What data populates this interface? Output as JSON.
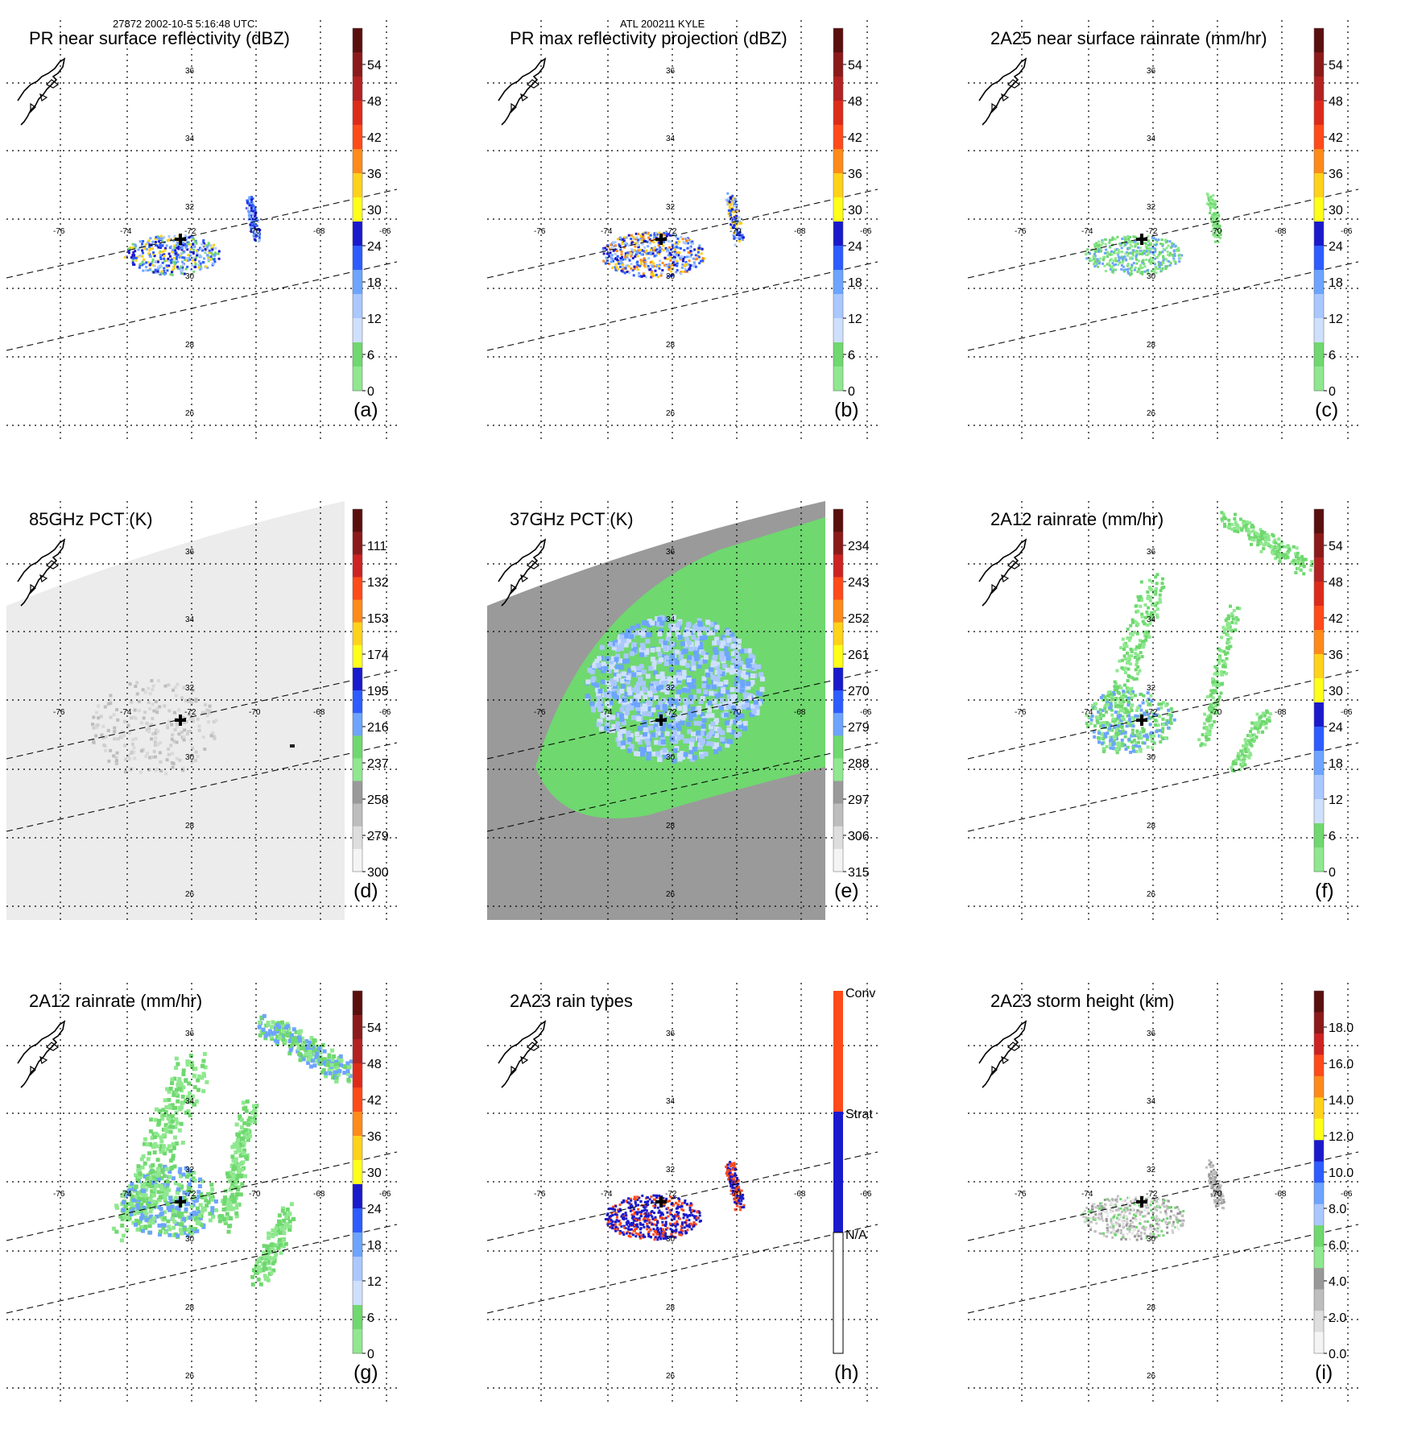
{
  "header": {
    "left": "27872 2002-10-5 5:16:48 UTC",
    "center": "ATL 200211 KYLE"
  },
  "map": {
    "lon_labels": [
      "-76",
      "-74",
      "-72",
      "-70",
      "-68",
      "-66"
    ],
    "lat_labels": [
      "36",
      "34",
      "32",
      "30",
      "28",
      "26"
    ],
    "center_marker": "storm-center-cross"
  },
  "colors": {
    "grid": "#000000",
    "green": "#6fd86f",
    "light_blue": "#aac8ff",
    "blue": "#2d5cff",
    "gray": "#999999"
  },
  "panels": [
    {
      "id": "a",
      "title": "PR near surface reflectivity (dBZ)",
      "label": "(a)",
      "colorbar": {
        "labels": [
          "54",
          "48",
          "42",
          "36",
          "30",
          "24",
          "18",
          "12",
          "6",
          "0"
        ]
      }
    },
    {
      "id": "b",
      "title": "PR max reflectivity projection (dBZ)",
      "label": "(b)",
      "colorbar": {
        "labels": [
          "54",
          "48",
          "42",
          "36",
          "30",
          "24",
          "18",
          "12",
          "6",
          "0"
        ]
      }
    },
    {
      "id": "c",
      "title": "2A25 near surface rainrate (mm/hr)",
      "label": "(c)",
      "colorbar": {
        "labels": [
          "54",
          "48",
          "42",
          "36",
          "30",
          "24",
          "18",
          "12",
          "6",
          "0"
        ]
      }
    },
    {
      "id": "d",
      "title": "85GHz PCT (K)",
      "label": "(d)",
      "colorbar": {
        "labels": [
          "111",
          "132",
          "153",
          "174",
          "195",
          "216",
          "237",
          "258",
          "279",
          "300"
        ]
      }
    },
    {
      "id": "e",
      "title": "37GHz PCT (K)",
      "label": "(e)",
      "colorbar": {
        "labels": [
          "234",
          "243",
          "252",
          "261",
          "270",
          "279",
          "288",
          "297",
          "306",
          "315"
        ]
      }
    },
    {
      "id": "f",
      "title": "2A12 rainrate (mm/hr)",
      "label": "(f)",
      "colorbar": {
        "labels": [
          "54",
          "48",
          "42",
          "36",
          "30",
          "24",
          "18",
          "12",
          "6",
          "0"
        ]
      }
    },
    {
      "id": "g",
      "title": "2A12 rainrate (mm/hr)",
      "label": "(g)",
      "colorbar": {
        "labels": [
          "54",
          "48",
          "42",
          "36",
          "30",
          "24",
          "18",
          "12",
          "6",
          "0"
        ]
      }
    },
    {
      "id": "h",
      "title": "2A23 rain types",
      "label": "(h)",
      "colorbar": {
        "labels": [
          "Conv",
          "Strat",
          "N/A"
        ]
      }
    },
    {
      "id": "i",
      "title": "2A23 storm height (km)",
      "label": "(i)",
      "colorbar": {
        "labels": [
          "18.0",
          "16.0",
          "14.0",
          "12.0",
          "10.0",
          "8.0",
          "6.0",
          "4.0",
          "2.0",
          "0.0"
        ]
      }
    }
  ]
}
